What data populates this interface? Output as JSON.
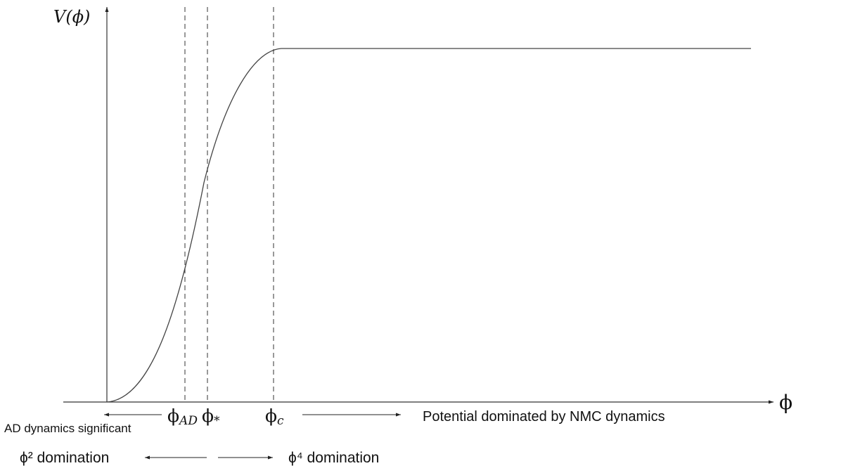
{
  "axes": {
    "y_label": "V(ϕ)",
    "x_label": "ϕ"
  },
  "markers": {
    "phi_ad": {
      "symbol": "ϕ",
      "subscript": "AD"
    },
    "phi_star": {
      "symbol": "ϕ",
      "subscript": "*"
    },
    "phi_c": {
      "symbol": "ϕ",
      "subscript": "c"
    }
  },
  "annotations": {
    "ad_dynamics": "AD dynamics significant",
    "nmc_dynamics": "Potential dominated by NMC dynamics",
    "phi2_domination": "ϕ² domination",
    "phi4_domination": "ϕ⁴ domination"
  },
  "colors": {
    "line": "#444444",
    "text": "#111111"
  }
}
